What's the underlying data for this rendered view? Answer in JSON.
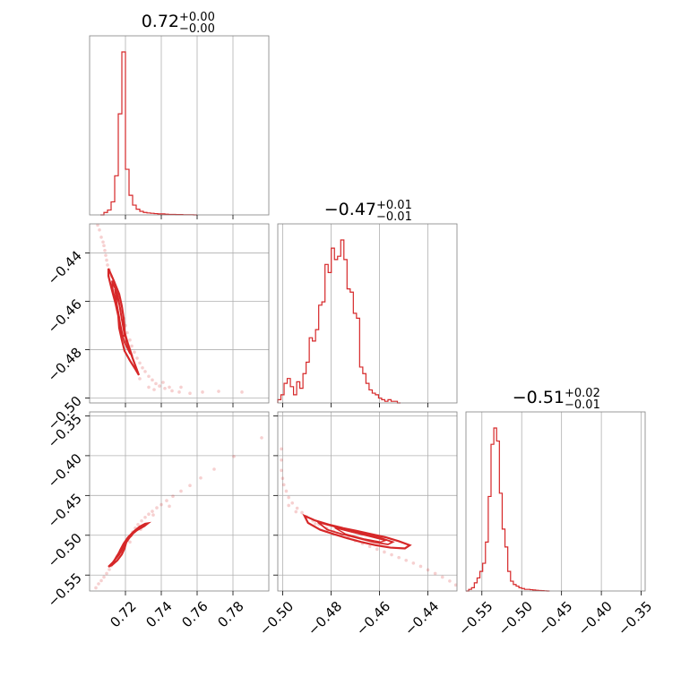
{
  "chart_data": {
    "type": "corner",
    "color": "#d62728",
    "grid": true,
    "parameters": [
      {
        "title": "0.72",
        "err_plus": "+0.00",
        "err_minus": "−0.00"
      },
      {
        "title": "−0.47",
        "err_plus": "+0.01",
        "err_minus": "−0.01"
      },
      {
        "title": "−0.51",
        "err_plus": "+0.02",
        "err_minus": "−0.01"
      }
    ],
    "x_ticks": [
      [
        "0.72",
        "0.74",
        "0.76",
        "0.78"
      ],
      [
        "−0.50",
        "−0.48",
        "−0.46",
        "−0.44"
      ],
      [
        "−0.55",
        "−0.50",
        "−0.45",
        "−0.40",
        "−0.35"
      ]
    ],
    "y_ticks": {
      "row1": [
        "−0.44",
        "−0.46",
        "−0.48",
        "−0.50"
      ],
      "row2": [
        "−0.35",
        "−0.40",
        "−0.45",
        "−0.50",
        "−0.55"
      ]
    },
    "ranges": [
      [
        0.7,
        0.8
      ],
      [
        -0.502,
        -0.428
      ],
      [
        -0.57,
        -0.345
      ]
    ],
    "histograms": [
      {
        "param": 0,
        "bin_width": 0.002,
        "bin_start": 0.706,
        "counts": [
          0.0,
          0.015,
          0.03,
          0.08,
          0.24,
          0.62,
          1.0,
          0.28,
          0.12,
          0.06,
          0.035,
          0.022,
          0.015,
          0.012,
          0.01,
          0.008,
          0.006,
          0.006,
          0.004,
          0.003,
          0.003,
          0.002,
          0.002,
          0.001,
          0.001,
          0.001,
          0.0
        ]
      },
      {
        "param": 1,
        "bin_width": 0.0013,
        "bin_start": -0.502,
        "counts": [
          0.02,
          0.05,
          0.12,
          0.15,
          0.1,
          0.05,
          0.13,
          0.09,
          0.18,
          0.25,
          0.4,
          0.38,
          0.45,
          0.6,
          0.62,
          0.85,
          0.8,
          0.95,
          0.88,
          0.9,
          1.0,
          0.88,
          0.7,
          0.68,
          0.55,
          0.52,
          0.22,
          0.18,
          0.12,
          0.08,
          0.06,
          0.05,
          0.03,
          0.02,
          0.01,
          0.02,
          0.01,
          0.01,
          0.0
        ]
      },
      {
        "param": 2,
        "bin_width": 0.0035,
        "bin_start": -0.57,
        "counts": [
          0.0,
          0.01,
          0.02,
          0.05,
          0.08,
          0.12,
          0.17,
          0.3,
          0.58,
          0.9,
          1.0,
          0.92,
          0.6,
          0.38,
          0.27,
          0.12,
          0.06,
          0.04,
          0.03,
          0.02,
          0.015,
          0.01,
          0.01,
          0.008,
          0.006,
          0.004,
          0.003,
          0.002,
          0.001,
          0.0
        ]
      }
    ],
    "scatter_pairs": [
      {
        "x_param": 0,
        "y_param": 1,
        "points": [
          [
            0.7045,
            -0.4285
          ],
          [
            0.7055,
            -0.4305
          ],
          [
            0.7065,
            -0.4335
          ],
          [
            0.7075,
            -0.4355
          ],
          [
            0.708,
            -0.437
          ],
          [
            0.7085,
            -0.439
          ],
          [
            0.709,
            -0.441
          ],
          [
            0.7095,
            -0.443
          ],
          [
            0.71,
            -0.445
          ],
          [
            0.711,
            -0.447
          ],
          [
            0.712,
            -0.4495
          ],
          [
            0.7135,
            -0.452
          ],
          [
            0.715,
            -0.455
          ],
          [
            0.716,
            -0.458
          ],
          [
            0.717,
            -0.461
          ],
          [
            0.718,
            -0.464
          ],
          [
            0.719,
            -0.467
          ],
          [
            0.72,
            -0.47
          ],
          [
            0.721,
            -0.473
          ],
          [
            0.7225,
            -0.476
          ],
          [
            0.7235,
            -0.4785
          ],
          [
            0.725,
            -0.481
          ],
          [
            0.7265,
            -0.4835
          ],
          [
            0.728,
            -0.4855
          ],
          [
            0.7295,
            -0.4875
          ],
          [
            0.731,
            -0.489
          ],
          [
            0.733,
            -0.491
          ],
          [
            0.735,
            -0.4925
          ],
          [
            0.737,
            -0.494
          ],
          [
            0.739,
            -0.495
          ],
          [
            0.742,
            -0.496
          ],
          [
            0.746,
            -0.497
          ],
          [
            0.75,
            -0.4975
          ],
          [
            0.756,
            -0.498
          ],
          [
            0.763,
            -0.4975
          ],
          [
            0.772,
            -0.4972
          ],
          [
            0.785,
            -0.4975
          ],
          [
            0.733,
            -0.4955
          ],
          [
            0.736,
            -0.4965
          ],
          [
            0.728,
            -0.492
          ],
          [
            0.741,
            -0.4935
          ],
          [
            0.751,
            -0.4955
          ],
          [
            0.7445,
            -0.4955
          ]
        ],
        "contours": [
          [
            [
              0.7105,
              -0.4465
            ],
            [
              0.7135,
              -0.4515
            ],
            [
              0.7165,
              -0.457
            ],
            [
              0.718,
              -0.462
            ],
            [
              0.719,
              -0.467
            ],
            [
              0.7195,
              -0.472
            ],
            [
              0.7205,
              -0.4765
            ],
            [
              0.7225,
              -0.4805
            ],
            [
              0.7245,
              -0.4845
            ],
            [
              0.7265,
              -0.4885
            ],
            [
              0.7275,
              -0.4905
            ],
            [
              0.7255,
              -0.488
            ],
            [
              0.7225,
              -0.4845
            ],
            [
              0.7195,
              -0.4805
            ],
            [
              0.718,
              -0.476
            ],
            [
              0.7165,
              -0.471
            ],
            [
              0.716,
              -0.466
            ],
            [
              0.7145,
              -0.461
            ],
            [
              0.7125,
              -0.4555
            ],
            [
              0.7105,
              -0.4495
            ],
            [
              0.7105,
              -0.4465
            ]
          ],
          [
            [
              0.7125,
              -0.4515
            ],
            [
              0.7155,
              -0.457
            ],
            [
              0.717,
              -0.4625
            ],
            [
              0.718,
              -0.4675
            ],
            [
              0.7195,
              -0.4725
            ],
            [
              0.7215,
              -0.4775
            ],
            [
              0.7235,
              -0.482
            ],
            [
              0.7225,
              -0.4815
            ],
            [
              0.7195,
              -0.477
            ],
            [
              0.7175,
              -0.472
            ],
            [
              0.7165,
              -0.4665
            ],
            [
              0.715,
              -0.461
            ],
            [
              0.713,
              -0.4555
            ],
            [
              0.7125,
              -0.4515
            ]
          ],
          [
            [
              0.714,
              -0.455
            ],
            [
              0.7165,
              -0.4615
            ],
            [
              0.718,
              -0.468
            ],
            [
              0.7195,
              -0.4745
            ],
            [
              0.7185,
              -0.474
            ],
            [
              0.717,
              -0.4685
            ],
            [
              0.7155,
              -0.462
            ],
            [
              0.714,
              -0.455
            ]
          ]
        ]
      },
      {
        "x_param": 0,
        "y_param": 2,
        "points": [
          [
            0.7035,
            -0.566
          ],
          [
            0.705,
            -0.561
          ],
          [
            0.7065,
            -0.557
          ],
          [
            0.708,
            -0.5525
          ],
          [
            0.7095,
            -0.548
          ],
          [
            0.711,
            -0.543
          ],
          [
            0.712,
            -0.5385
          ],
          [
            0.7135,
            -0.5335
          ],
          [
            0.715,
            -0.5285
          ],
          [
            0.7165,
            -0.523
          ],
          [
            0.718,
            -0.5175
          ],
          [
            0.7195,
            -0.512
          ],
          [
            0.721,
            -0.5065
          ],
          [
            0.7225,
            -0.501
          ],
          [
            0.724,
            -0.496
          ],
          [
            0.7255,
            -0.491
          ],
          [
            0.727,
            -0.4865
          ],
          [
            0.729,
            -0.482
          ],
          [
            0.731,
            -0.4775
          ],
          [
            0.733,
            -0.4735
          ],
          [
            0.735,
            -0.47
          ],
          [
            0.7375,
            -0.4655
          ],
          [
            0.74,
            -0.4615
          ],
          [
            0.743,
            -0.4565
          ],
          [
            0.7465,
            -0.451
          ],
          [
            0.751,
            -0.4445
          ],
          [
            0.756,
            -0.4375
          ],
          [
            0.762,
            -0.428
          ],
          [
            0.7695,
            -0.417
          ],
          [
            0.7805,
            -0.401
          ],
          [
            0.796,
            -0.3775
          ],
          [
            0.7355,
            -0.4745
          ],
          [
            0.7445,
            -0.4635
          ],
          [
            0.7225,
            -0.5085
          ],
          [
            0.7285,
            -0.4925
          ]
        ],
        "contours": [
          [
            [
              0.7105,
              -0.5395
            ],
            [
              0.713,
              -0.534
            ],
            [
              0.7155,
              -0.5265
            ],
            [
              0.717,
              -0.519
            ],
            [
              0.719,
              -0.5105
            ],
            [
              0.7215,
              -0.5025
            ],
            [
              0.7245,
              -0.4955
            ],
            [
              0.728,
              -0.489
            ],
            [
              0.731,
              -0.4855
            ],
            [
              0.7325,
              -0.485
            ],
            [
              0.7305,
              -0.4885
            ],
            [
              0.7265,
              -0.4935
            ],
            [
              0.7225,
              -0.5005
            ],
            [
              0.7205,
              -0.5085
            ],
            [
              0.7195,
              -0.5165
            ],
            [
              0.718,
              -0.524
            ],
            [
              0.7155,
              -0.5315
            ],
            [
              0.7125,
              -0.5375
            ],
            [
              0.7105,
              -0.5395
            ]
          ],
          [
            [
              0.7135,
              -0.5325
            ],
            [
              0.7165,
              -0.5245
            ],
            [
              0.718,
              -0.516
            ],
            [
              0.7205,
              -0.5075
            ],
            [
              0.7235,
              -0.4995
            ],
            [
              0.727,
              -0.4925
            ],
            [
              0.7255,
              -0.495
            ],
            [
              0.722,
              -0.5015
            ],
            [
              0.7195,
              -0.5095
            ],
            [
              0.7175,
              -0.518
            ],
            [
              0.715,
              -0.5265
            ],
            [
              0.7135,
              -0.5325
            ]
          ],
          [
            [
              0.716,
              -0.526
            ],
            [
              0.7185,
              -0.5165
            ],
            [
              0.721,
              -0.5065
            ],
            [
              0.724,
              -0.4995
            ],
            [
              0.7225,
              -0.503
            ],
            [
              0.7195,
              -0.5125
            ],
            [
              0.7175,
              -0.5215
            ],
            [
              0.716,
              -0.526
            ]
          ]
        ]
      },
      {
        "x_param": 1,
        "y_param": 2,
        "points": [
          [
            -0.5005,
            -0.3915
          ],
          [
            -0.5005,
            -0.4055
          ],
          [
            -0.5005,
            -0.4185
          ],
          [
            -0.5,
            -0.4285
          ],
          [
            -0.4995,
            -0.4365
          ],
          [
            -0.4985,
            -0.4445
          ],
          [
            -0.4975,
            -0.4525
          ],
          [
            -0.496,
            -0.4595
          ],
          [
            -0.494,
            -0.466
          ],
          [
            -0.492,
            -0.4715
          ],
          [
            -0.49,
            -0.477
          ],
          [
            -0.4875,
            -0.482
          ],
          [
            -0.485,
            -0.4865
          ],
          [
            -0.482,
            -0.491
          ],
          [
            -0.479,
            -0.495
          ],
          [
            -0.476,
            -0.4995
          ],
          [
            -0.473,
            -0.503
          ],
          [
            -0.47,
            -0.507
          ],
          [
            -0.467,
            -0.5105
          ],
          [
            -0.464,
            -0.514
          ],
          [
            -0.461,
            -0.5175
          ],
          [
            -0.458,
            -0.521
          ],
          [
            -0.455,
            -0.5245
          ],
          [
            -0.452,
            -0.528
          ],
          [
            -0.449,
            -0.5315
          ],
          [
            -0.446,
            -0.535
          ],
          [
            -0.443,
            -0.539
          ],
          [
            -0.44,
            -0.5435
          ],
          [
            -0.437,
            -0.548
          ],
          [
            -0.434,
            -0.5525
          ],
          [
            -0.431,
            -0.5575
          ],
          [
            -0.4285,
            -0.5625
          ],
          [
            -0.4975,
            -0.4625
          ],
          [
            -0.4945,
            -0.4705
          ],
          [
            -0.4905,
            -0.4765
          ],
          [
            -0.4865,
            -0.4855
          ],
          [
            -0.4815,
            -0.4925
          ],
          [
            -0.4775,
            -0.4975
          ]
        ],
        "contours": [
          [
            [
              -0.491,
              -0.4755
            ],
            [
              -0.4865,
              -0.4815
            ],
            [
              -0.481,
              -0.4865
            ],
            [
              -0.475,
              -0.491
            ],
            [
              -0.4695,
              -0.4945
            ],
            [
              -0.4635,
              -0.4985
            ],
            [
              -0.4575,
              -0.5025
            ],
            [
              -0.452,
              -0.5075
            ],
            [
              -0.4475,
              -0.5125
            ],
            [
              -0.4495,
              -0.5165
            ],
            [
              -0.4555,
              -0.5155
            ],
            [
              -0.4615,
              -0.5125
            ],
            [
              -0.4675,
              -0.5085
            ],
            [
              -0.4735,
              -0.5035
            ],
            [
              -0.479,
              -0.4985
            ],
            [
              -0.4845,
              -0.493
            ],
            [
              -0.4895,
              -0.4845
            ],
            [
              -0.491,
              -0.4755
            ]
          ],
          [
            [
              -0.4855,
              -0.4835
            ],
            [
              -0.4795,
              -0.4885
            ],
            [
              -0.4725,
              -0.4935
            ],
            [
              -0.466,
              -0.4985
            ],
            [
              -0.4595,
              -0.5035
            ],
            [
              -0.4545,
              -0.5085
            ],
            [
              -0.4565,
              -0.5115
            ],
            [
              -0.4625,
              -0.5085
            ],
            [
              -0.469,
              -0.5035
            ],
            [
              -0.4755,
              -0.4985
            ],
            [
              -0.4815,
              -0.493
            ],
            [
              -0.4855,
              -0.4835
            ]
          ],
          [
            [
              -0.4785,
              -0.4905
            ],
            [
              -0.4715,
              -0.496
            ],
            [
              -0.464,
              -0.5015
            ],
            [
              -0.4575,
              -0.5065
            ],
            [
              -0.4595,
              -0.5085
            ],
            [
              -0.4665,
              -0.5045
            ],
            [
              -0.474,
              -0.4985
            ],
            [
              -0.4785,
              -0.4905
            ]
          ]
        ]
      }
    ]
  }
}
